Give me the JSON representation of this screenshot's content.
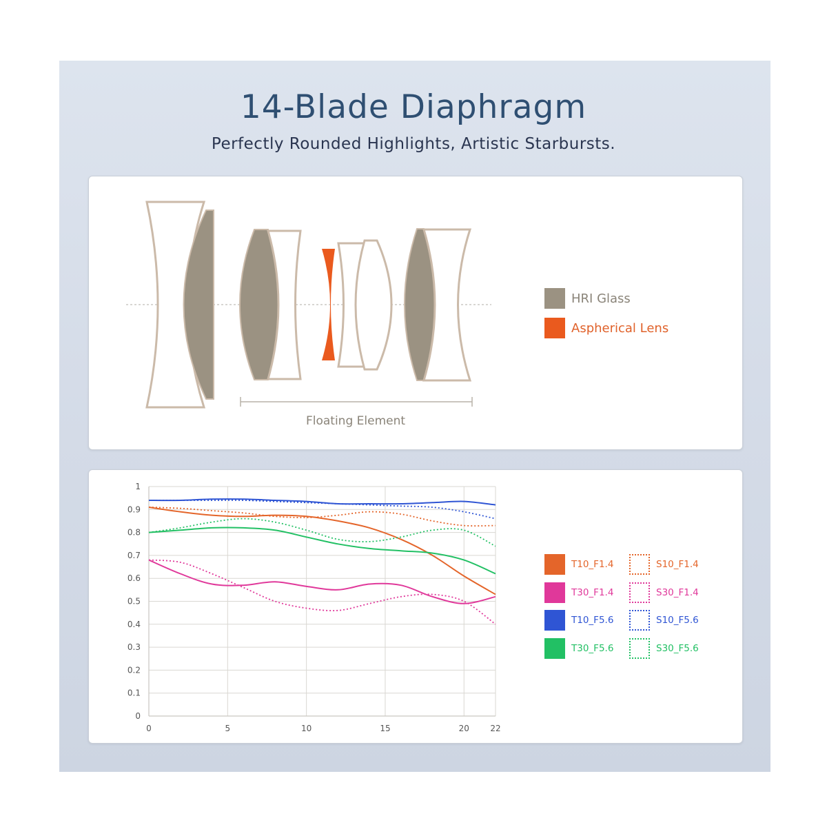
{
  "header": {
    "title": "14-Blade Diaphragm",
    "subtitle": "Perfectly Rounded Highlights, Artistic Starbursts."
  },
  "lens_diagram": {
    "bracket_label": "Floating Element",
    "legend": [
      {
        "label": "HRI Glass",
        "color": "#9b9282"
      },
      {
        "label": "Aspherical Lens",
        "color": "#ea5a1e"
      }
    ],
    "outline_color": "#cbbaa9"
  },
  "chart_data": {
    "type": "line",
    "x": [
      0,
      2,
      4,
      6,
      8,
      10,
      12,
      14,
      16,
      18,
      20,
      22
    ],
    "xticks": [
      0,
      5,
      10,
      15,
      20,
      22
    ],
    "yticks": [
      0,
      0.1,
      0.2,
      0.3,
      0.4,
      0.5,
      0.6,
      0.7,
      0.8,
      0.9,
      1
    ],
    "xlim": [
      0,
      22
    ],
    "ylim": [
      0,
      1
    ],
    "grid": true,
    "legend_position": "right",
    "series": [
      {
        "name": "T10_F1.4",
        "style": "solid",
        "color": "#e4652a",
        "values": [
          0.91,
          0.89,
          0.875,
          0.87,
          0.875,
          0.87,
          0.85,
          0.82,
          0.77,
          0.7,
          0.61,
          0.53
        ]
      },
      {
        "name": "S10_F1.4",
        "style": "dotted",
        "color": "#e4652a",
        "values": [
          0.91,
          0.905,
          0.895,
          0.885,
          0.87,
          0.865,
          0.875,
          0.89,
          0.88,
          0.85,
          0.83,
          0.83
        ]
      },
      {
        "name": "T30_F1.4",
        "style": "solid",
        "color": "#e0389a",
        "values": [
          0.68,
          0.62,
          0.575,
          0.57,
          0.585,
          0.565,
          0.55,
          0.575,
          0.57,
          0.52,
          0.49,
          0.52
        ]
      },
      {
        "name": "S30_F1.4",
        "style": "dotted",
        "color": "#e0389a",
        "values": [
          0.68,
          0.67,
          0.62,
          0.56,
          0.5,
          0.47,
          0.46,
          0.49,
          0.52,
          0.53,
          0.5,
          0.4
        ]
      },
      {
        "name": "T10_F5.6",
        "style": "solid",
        "color": "#2f55d4",
        "values": [
          0.94,
          0.94,
          0.945,
          0.945,
          0.94,
          0.935,
          0.925,
          0.925,
          0.925,
          0.93,
          0.935,
          0.92
        ]
      },
      {
        "name": "S10_F5.6",
        "style": "dotted",
        "color": "#2f55d4",
        "values": [
          0.94,
          0.94,
          0.94,
          0.94,
          0.935,
          0.93,
          0.925,
          0.92,
          0.915,
          0.91,
          0.89,
          0.86
        ]
      },
      {
        "name": "T30_F5.6",
        "style": "solid",
        "color": "#22c064",
        "values": [
          0.8,
          0.81,
          0.82,
          0.82,
          0.81,
          0.78,
          0.75,
          0.73,
          0.72,
          0.71,
          0.68,
          0.62
        ]
      },
      {
        "name": "S30_F5.6",
        "style": "dotted",
        "color": "#22c064",
        "values": [
          0.8,
          0.82,
          0.845,
          0.86,
          0.845,
          0.81,
          0.77,
          0.76,
          0.78,
          0.81,
          0.81,
          0.74
        ]
      }
    ]
  }
}
